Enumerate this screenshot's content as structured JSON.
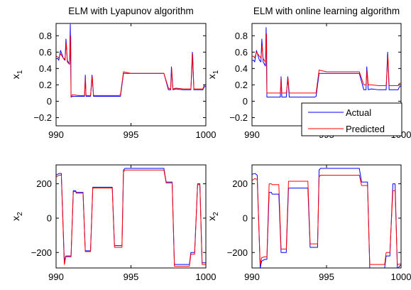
{
  "figure": {
    "legend_position": "lower-right of top-right panel"
  },
  "chart_data": [
    {
      "type": "line",
      "title": "ELM with Lyapunov algorithm",
      "xlabel": "",
      "ylabel": "x",
      "ylabel_subscript": "1",
      "xlim": [
        990,
        1000
      ],
      "ylim": [
        -0.3,
        0.95
      ],
      "xticks": [
        990,
        995,
        1000
      ],
      "yticks": [
        -0.2,
        0,
        0.2,
        0.4,
        0.6,
        0.8
      ],
      "ytick_labels": [
        "−0.2",
        "0",
        "0.2",
        "0.4",
        "0.6",
        "0.8"
      ],
      "grid": false,
      "series": [
        {
          "color": "#0000ff",
          "x": [
            990.0,
            990.12,
            990.18,
            990.3,
            990.5,
            990.6,
            990.66,
            990.75,
            990.9,
            990.95,
            991.0,
            991.1,
            991.5,
            991.9,
            991.95,
            992.0,
            992.1,
            992.3,
            992.4,
            992.5,
            992.7,
            993.0,
            993.5,
            994.0,
            994.2,
            994.3,
            994.5,
            995.0,
            996.0,
            997.0,
            997.2,
            997.5,
            997.65,
            997.7,
            997.8,
            998.0,
            998.5,
            999.0,
            999.1,
            999.2,
            999.5,
            999.8,
            999.9,
            1000.0
          ],
          "y": [
            0.52,
            0.52,
            0.5,
            0.62,
            0.52,
            0.5,
            0.76,
            0.5,
            0.45,
            0.94,
            0.05,
            0.06,
            0.06,
            0.06,
            0.32,
            0.06,
            0.06,
            0.06,
            0.32,
            0.06,
            0.06,
            0.06,
            0.06,
            0.06,
            0.06,
            0.06,
            0.34,
            0.34,
            0.34,
            0.34,
            0.34,
            0.14,
            0.14,
            0.42,
            0.14,
            0.15,
            0.14,
            0.14,
            0.6,
            0.14,
            0.14,
            0.14,
            0.18,
            0.18
          ]
        },
        {
          "color": "#ff0000",
          "x": [
            990.0,
            990.1,
            990.18,
            990.3,
            990.5,
            990.6,
            990.68,
            990.75,
            990.9,
            990.98,
            991.0,
            991.1,
            991.5,
            991.9,
            991.96,
            992.0,
            992.1,
            992.3,
            992.42,
            992.5,
            992.7,
            993.0,
            993.5,
            994.0,
            994.2,
            994.3,
            994.5,
            995.0,
            996.0,
            997.0,
            997.2,
            997.5,
            997.65,
            997.72,
            997.8,
            998.0,
            998.5,
            999.0,
            999.12,
            999.2,
            999.5,
            999.8,
            999.9,
            1000.0
          ],
          "y": [
            0.55,
            0.54,
            0.53,
            0.58,
            0.52,
            0.52,
            0.71,
            0.48,
            0.45,
            0.8,
            0.05,
            0.08,
            0.07,
            0.07,
            0.3,
            0.07,
            0.07,
            0.07,
            0.3,
            0.07,
            0.07,
            0.07,
            0.07,
            0.07,
            0.07,
            0.08,
            0.36,
            0.34,
            0.34,
            0.34,
            0.34,
            0.16,
            0.15,
            0.4,
            0.15,
            0.16,
            0.15,
            0.15,
            0.58,
            0.15,
            0.15,
            0.15,
            0.2,
            0.2
          ]
        }
      ]
    },
    {
      "type": "line",
      "title": "ELM with online learning algorithm",
      "xlabel": "",
      "ylabel": "x",
      "ylabel_subscript": "1",
      "xlim": [
        990,
        1000
      ],
      "ylim": [
        -0.3,
        0.95
      ],
      "xticks": [
        990,
        995,
        1000
      ],
      "yticks": [
        -0.2,
        0,
        0.2,
        0.4,
        0.6,
        0.8
      ],
      "ytick_labels": [
        "−0.2",
        "0",
        "0.2",
        "0.4",
        "0.6",
        "0.8"
      ],
      "grid": false,
      "legend": [
        "Actual",
        "Predicted"
      ],
      "series": [
        {
          "name": "Actual",
          "color": "#0000ff",
          "x": [
            990.0,
            990.12,
            990.18,
            990.3,
            990.5,
            990.6,
            990.66,
            990.75,
            990.9,
            990.95,
            991.0,
            991.1,
            991.5,
            991.9,
            991.95,
            992.0,
            992.1,
            992.3,
            992.4,
            992.5,
            992.7,
            993.0,
            993.5,
            994.0,
            994.2,
            994.3,
            994.5,
            995.0,
            996.0,
            997.0,
            997.2,
            997.5,
            997.65,
            997.7,
            997.8,
            998.0,
            998.5,
            999.0,
            999.1,
            999.2,
            999.5,
            999.8,
            999.9,
            1000.0
          ],
          "y": [
            0.5,
            0.5,
            0.48,
            0.62,
            0.5,
            0.48,
            0.76,
            0.48,
            0.43,
            0.9,
            0.05,
            0.05,
            0.05,
            0.05,
            0.3,
            0.05,
            0.05,
            0.05,
            0.3,
            0.05,
            0.05,
            0.05,
            0.05,
            0.05,
            0.05,
            0.06,
            0.34,
            0.34,
            0.34,
            0.34,
            0.34,
            0.14,
            0.14,
            0.42,
            0.14,
            0.15,
            0.14,
            0.14,
            0.6,
            0.14,
            0.14,
            0.14,
            0.18,
            0.18
          ]
        },
        {
          "name": "Predicted",
          "color": "#ff0000",
          "x": [
            990.0,
            990.1,
            990.18,
            990.3,
            990.5,
            990.6,
            990.68,
            990.75,
            990.9,
            990.98,
            991.0,
            991.1,
            991.5,
            991.9,
            991.96,
            992.0,
            992.1,
            992.3,
            992.42,
            992.5,
            992.7,
            993.0,
            993.5,
            994.0,
            994.2,
            994.3,
            994.5,
            995.0,
            996.0,
            997.0,
            997.2,
            997.5,
            997.65,
            997.72,
            997.8,
            998.0,
            998.5,
            999.0,
            999.12,
            999.2,
            999.5,
            999.8,
            999.9,
            1000.0
          ],
          "y": [
            0.55,
            0.55,
            0.53,
            0.6,
            0.55,
            0.53,
            0.68,
            0.52,
            0.48,
            0.82,
            0.1,
            0.1,
            0.1,
            0.1,
            0.28,
            0.1,
            0.1,
            0.1,
            0.28,
            0.1,
            0.1,
            0.1,
            0.1,
            0.1,
            0.1,
            0.1,
            0.38,
            0.36,
            0.36,
            0.36,
            0.36,
            0.2,
            0.2,
            0.38,
            0.2,
            0.2,
            0.19,
            0.19,
            0.55,
            0.19,
            0.19,
            0.19,
            0.22,
            0.22
          ]
        }
      ]
    },
    {
      "type": "line",
      "title": "",
      "xlabel": "",
      "ylabel": "x",
      "ylabel_subscript": "2",
      "xlim": [
        990,
        1000
      ],
      "ylim": [
        -290,
        310
      ],
      "xticks": [
        990,
        995,
        1000
      ],
      "yticks": [
        -200,
        0,
        200
      ],
      "ytick_labels": [
        "−200",
        "0",
        "200"
      ],
      "grid": false,
      "series": [
        {
          "color": "#0000ff",
          "x": [
            990.0,
            990.2,
            990.35,
            990.55,
            990.65,
            990.85,
            991.0,
            991.15,
            991.3,
            991.35,
            991.8,
            991.95,
            992.05,
            992.3,
            992.45,
            992.6,
            993.0,
            993.5,
            993.75,
            993.9,
            994.1,
            994.25,
            994.4,
            994.5,
            994.6,
            995.0,
            996.0,
            997.0,
            997.2,
            997.35,
            997.75,
            997.9,
            998.5,
            998.9,
            999.0,
            999.25,
            999.45,
            999.6,
            999.75,
            999.8,
            1000.0
          ],
          "y": [
            250,
            260,
            260,
            -250,
            -220,
            -220,
            -220,
            160,
            160,
            150,
            150,
            -190,
            -190,
            -190,
            180,
            180,
            180,
            180,
            180,
            -160,
            -160,
            -160,
            -160,
            280,
            290,
            290,
            290,
            290,
            290,
            210,
            210,
            -270,
            -270,
            -270,
            -200,
            -200,
            200,
            200,
            -260,
            -260,
            -260
          ]
        },
        {
          "color": "#ff0000",
          "x": [
            990.0,
            990.2,
            990.35,
            990.55,
            990.65,
            990.85,
            991.0,
            991.15,
            991.3,
            991.35,
            991.8,
            991.95,
            992.05,
            992.3,
            992.45,
            992.6,
            993.0,
            993.5,
            993.75,
            993.9,
            994.1,
            994.25,
            994.4,
            994.5,
            994.6,
            995.0,
            996.0,
            997.0,
            997.2,
            997.35,
            997.75,
            997.9,
            998.5,
            998.9,
            999.0,
            999.25,
            999.45,
            999.6,
            999.75,
            999.8,
            1000.0
          ],
          "y": [
            240,
            250,
            250,
            -270,
            -225,
            -225,
            -225,
            155,
            155,
            145,
            145,
            -195,
            -195,
            -195,
            175,
            175,
            175,
            175,
            175,
            -170,
            -170,
            -170,
            -170,
            270,
            280,
            280,
            280,
            280,
            280,
            205,
            205,
            -280,
            -280,
            -280,
            -210,
            -210,
            195,
            195,
            -270,
            -270,
            -270
          ]
        }
      ]
    },
    {
      "type": "line",
      "title": "",
      "xlabel": "",
      "ylabel": "x",
      "ylabel_subscript": "2",
      "xlim": [
        990,
        1000
      ],
      "ylim": [
        -290,
        310
      ],
      "xticks": [
        990,
        995,
        1000
      ],
      "yticks": [
        -200,
        0,
        200
      ],
      "ytick_labels": [
        "−200",
        "0",
        "200"
      ],
      "grid": false,
      "series": [
        {
          "name": "Actual",
          "color": "#0000ff",
          "x": [
            990.0,
            990.2,
            990.35,
            990.55,
            990.65,
            990.85,
            991.0,
            991.15,
            991.3,
            991.35,
            991.8,
            991.95,
            992.05,
            992.3,
            992.45,
            992.6,
            993.0,
            993.5,
            993.75,
            993.9,
            994.1,
            994.25,
            994.4,
            994.5,
            994.6,
            995.0,
            996.0,
            997.0,
            997.2,
            997.35,
            997.75,
            997.9,
            998.5,
            998.9,
            999.0,
            999.25,
            999.45,
            999.6,
            999.75,
            999.8,
            1000.0
          ],
          "y": [
            255,
            260,
            250,
            -290,
            -250,
            -240,
            -240,
            150,
            150,
            140,
            140,
            -200,
            -200,
            -200,
            175,
            175,
            175,
            175,
            175,
            -170,
            -170,
            -170,
            -170,
            280,
            290,
            290,
            290,
            290,
            290,
            210,
            210,
            -290,
            -290,
            -290,
            -220,
            -220,
            200,
            200,
            -290,
            -290,
            -270
          ]
        },
        {
          "name": "Predicted",
          "color": "#ff0000",
          "x": [
            990.0,
            990.2,
            990.35,
            990.55,
            990.65,
            990.85,
            991.0,
            991.15,
            991.3,
            991.35,
            991.8,
            991.95,
            992.05,
            992.3,
            992.45,
            992.6,
            993.0,
            993.5,
            993.75,
            993.9,
            994.1,
            994.25,
            994.4,
            994.5,
            994.6,
            995.0,
            996.0,
            997.0,
            997.2,
            997.35,
            997.75,
            997.9,
            998.5,
            998.9,
            999.0,
            999.25,
            999.45,
            999.6,
            999.75,
            999.8,
            1000.0
          ],
          "y": [
            220,
            230,
            225,
            -270,
            -230,
            -225,
            -225,
            200,
            200,
            195,
            195,
            -180,
            -180,
            -180,
            215,
            215,
            215,
            215,
            215,
            -150,
            -150,
            -150,
            -150,
            240,
            250,
            250,
            250,
            250,
            250,
            190,
            190,
            -270,
            -270,
            -270,
            -200,
            -200,
            160,
            160,
            -270,
            -270,
            -265
          ]
        }
      ]
    }
  ]
}
